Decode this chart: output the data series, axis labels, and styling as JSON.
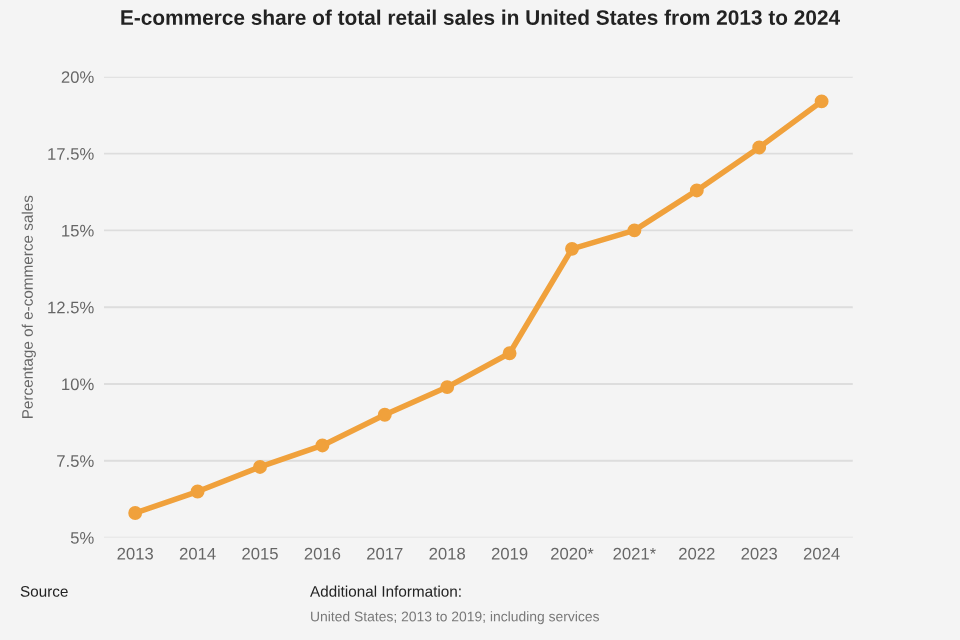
{
  "chart_data": {
    "type": "line",
    "title": "E-commerce share of total retail sales in United States from 2013 to 2024",
    "ylabel": "Percentage of e-commerce sales",
    "categories": [
      "2013",
      "2014",
      "2015",
      "2016",
      "2017",
      "2018",
      "2019",
      "2020*",
      "2021*",
      "2022",
      "2023",
      "2024"
    ],
    "series": [
      {
        "color": "#f0a13c",
        "values": [
          5.8,
          6.5,
          7.3,
          8.0,
          9.0,
          9.9,
          11.0,
          14.4,
          15.0,
          16.3,
          17.7,
          19.2
        ]
      }
    ],
    "ylim": [
      5,
      20
    ],
    "yticks": [
      {
        "value": 5,
        "label": "5%"
      },
      {
        "value": 7.5,
        "label": "7.5%"
      },
      {
        "value": 10,
        "label": "10%"
      },
      {
        "value": 12.5,
        "label": "12.5%"
      },
      {
        "value": 15,
        "label": "15%"
      },
      {
        "value": 17.5,
        "label": "17.5%"
      },
      {
        "value": 20,
        "label": "20%"
      }
    ],
    "grid": "y",
    "marker": "circle",
    "line_style": "solid",
    "annotations": [
      "Source",
      "Additional Information:",
      "United States; 2013 to 2019; including services"
    ]
  }
}
